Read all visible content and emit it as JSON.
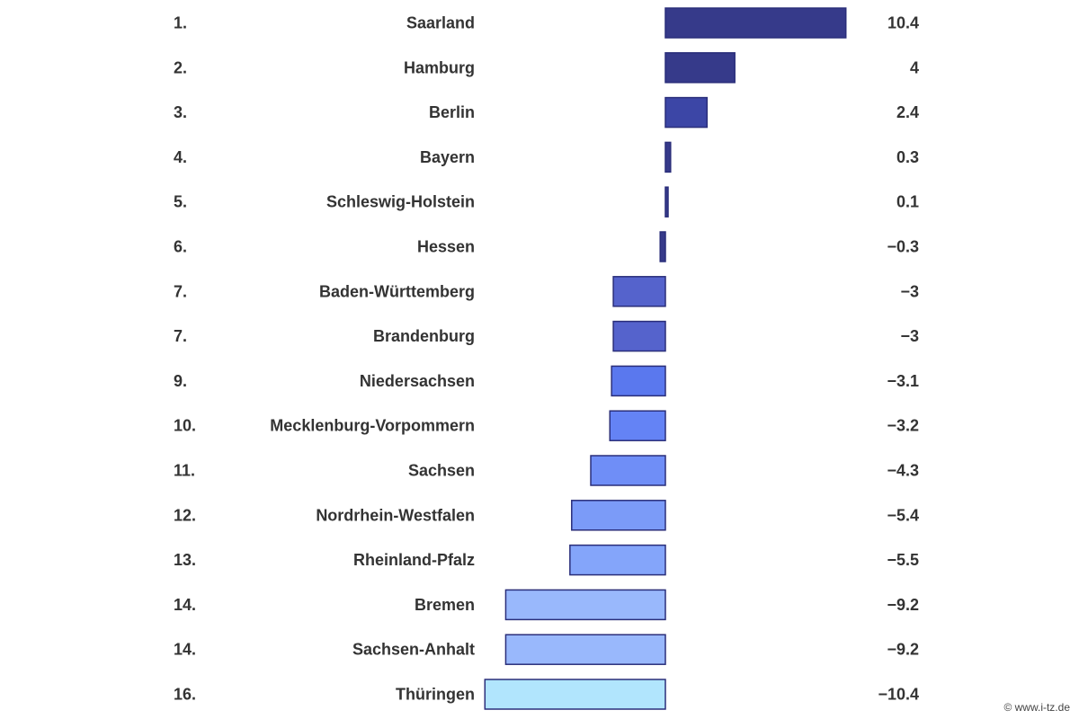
{
  "chart_data": {
    "type": "bar",
    "orientation": "horizontal",
    "title": "",
    "xlabel": "",
    "ylabel": "",
    "grid": false,
    "legend": "none",
    "xlim": [
      -10.4,
      10.4
    ],
    "ranks": [
      "1.",
      "2.",
      "3.",
      "4.",
      "5.",
      "6.",
      "7.",
      "7.",
      "9.",
      "10.",
      "11.",
      "12.",
      "13.",
      "14.",
      "14.",
      "16."
    ],
    "categories": [
      "Saarland",
      "Hamburg",
      "Berlin",
      "Bayern",
      "Schleswig-Holstein",
      "Hessen",
      "Baden-Württemberg",
      "Brandenburg",
      "Niedersachsen",
      "Mecklenburg-Vorpommern",
      "Sachsen",
      "Nordrhein-Westfalen",
      "Rheinland-Pfalz",
      "Bremen",
      "Sachsen-Anhalt",
      "Thüringen"
    ],
    "values": [
      10.4,
      4,
      2.4,
      0.3,
      0.1,
      -0.3,
      -3,
      -3,
      -3.1,
      -3.2,
      -4.3,
      -5.4,
      -5.5,
      -9.2,
      -9.2,
      -10.4
    ],
    "value_labels": [
      "10.4",
      "4",
      "2.4",
      "0.3",
      "0.1",
      "−0.3",
      "−3",
      "−3",
      "−3.1",
      "−3.2",
      "−4.3",
      "−5.4",
      "−5.5",
      "−9.2",
      "−9.2",
      "−10.4"
    ],
    "colors": [
      "#363a8a",
      "#363a8a",
      "#3c46a6",
      "#363a8a",
      "#363a8a",
      "#363a8a",
      "#5563cc",
      "#5563cc",
      "#5a78ee",
      "#6483f5",
      "#6f8ef7",
      "#7b9bf8",
      "#84a5fa",
      "#99b8fc",
      "#99b8fc",
      "#b1e5fd"
    ],
    "bar_stroke": "#2a2e7a"
  },
  "watermark": "© www.i-tz.de"
}
